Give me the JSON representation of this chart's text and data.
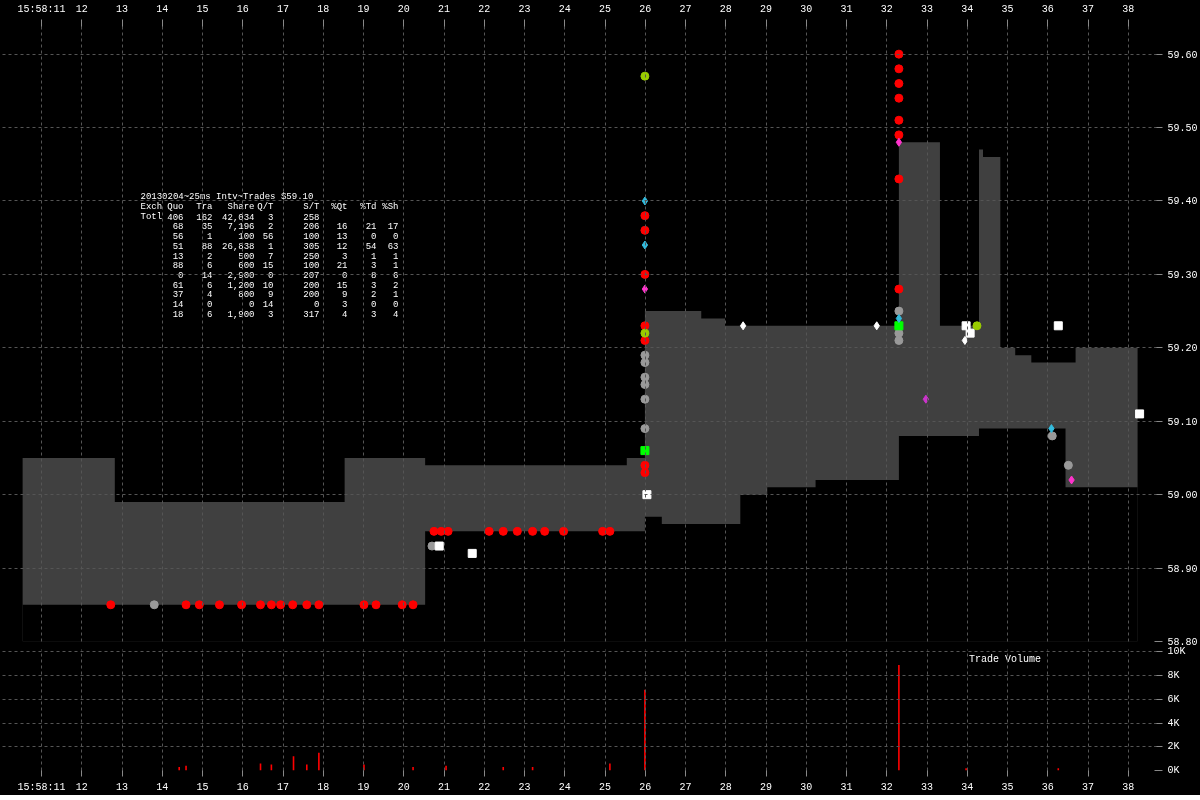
{
  "chart_data": [
    {
      "type": "scatter",
      "xlim": [
        "2013-02-04T15:58:10.03",
        "2013-02-04T15:58:38.70"
      ],
      "ylim": [
        58.8,
        59.639
      ],
      "xticks": [
        {
          "value": "2013-02-04T15:58:11",
          "label": "15:58:11"
        },
        {
          "value": "2013-02-04T15:58:12",
          "label": "12"
        },
        {
          "value": "2013-02-04T15:58:13",
          "label": "13"
        },
        {
          "value": "2013-02-04T15:58:14",
          "label": "14"
        },
        {
          "value": "2013-02-04T15:58:15",
          "label": "15"
        },
        {
          "value": "2013-02-04T15:58:16",
          "label": "16"
        },
        {
          "value": "2013-02-04T15:58:17",
          "label": "17"
        },
        {
          "value": "2013-02-04T15:58:18",
          "label": "18"
        },
        {
          "value": "2013-02-04T15:58:19",
          "label": "19"
        },
        {
          "value": "2013-02-04T15:58:20",
          "label": "20"
        },
        {
          "value": "2013-02-04T15:58:21",
          "label": "21"
        },
        {
          "value": "2013-02-04T15:58:22",
          "label": "22"
        },
        {
          "value": "2013-02-04T15:58:23",
          "label": "23"
        },
        {
          "value": "2013-02-04T15:58:24",
          "label": "24"
        },
        {
          "value": "2013-02-04T15:58:25",
          "label": "25"
        },
        {
          "value": "2013-02-04T15:58:26",
          "label": "26"
        },
        {
          "value": "2013-02-04T15:58:27",
          "label": "27"
        },
        {
          "value": "2013-02-04T15:58:28",
          "label": "28"
        },
        {
          "value": "2013-02-04T15:58:29",
          "label": "29"
        },
        {
          "value": "2013-02-04T15:58:30",
          "label": "30"
        },
        {
          "value": "2013-02-04T15:58:31",
          "label": "31"
        },
        {
          "value": "2013-02-04T15:58:32",
          "label": "32"
        },
        {
          "value": "2013-02-04T15:58:33",
          "label": "33"
        },
        {
          "value": "2013-02-04T15:58:34",
          "label": "34"
        },
        {
          "value": "2013-02-04T15:58:35",
          "label": "35"
        },
        {
          "value": "2013-02-04T15:58:36",
          "label": "36"
        },
        {
          "value": "2013-02-04T15:58:37",
          "label": "37"
        },
        {
          "value": "2013-02-04T15:58:38",
          "label": "38"
        }
      ],
      "yticks": [
        {
          "value": 58.8,
          "label": "58.80"
        },
        {
          "value": 58.9,
          "label": "58.90"
        },
        {
          "value": 59.0,
          "label": "59.00"
        },
        {
          "value": 59.1,
          "label": "59.10"
        },
        {
          "value": 59.2,
          "label": "59.20"
        },
        {
          "value": 59.3,
          "label": "59.30"
        },
        {
          "value": 59.4,
          "label": "59.40"
        },
        {
          "value": 59.5,
          "label": "59.50"
        },
        {
          "value": 59.6,
          "label": "59.60"
        }
      ],
      "grid": true,
      "annotations": [
        "20130204~25ms Intv~Trades $59.10",
        "Exch Quo Tra Share Q/T S/T %Qt %Td %Sh",
        "Totl 406 162 42,034 3 258",
        "68 35 7,196 2 206 16 21 17",
        "56 1 100 56 100 13 0 0",
        "51 88 26,838 1 305 12 54 63",
        "13 2 500 7 250 3 1 1",
        "88 6 600 15 100 21 3 1",
        "0 14 2,900 0 207 0 8 6",
        "61 6 1,200 10 200 15 3 2",
        "37 4 800 9 200 9 2 1",
        "14 0 0 14 0 3 0 0",
        "18 6 1,900 3 317 4 3 4"
      ],
      "series": [
        {
          "type": "area",
          "color": "#404040",
          "x": [
            "2013-02-04T15:58:10.53",
            "2013-02-04T15:58:12.82",
            "2013-02-04T15:58:18.53",
            "2013-02-04T15:58:20.53",
            "2013-02-04T15:58:25.54",
            "2013-02-04T15:58:25.99",
            "2013-02-04T15:58:26.41",
            "2013-02-04T15:58:27.39",
            "2013-02-04T15:58:27.98",
            "2013-02-04T15:58:28.36",
            "2013-02-04T15:58:29.03",
            "2013-02-04T15:58:30.23",
            "2013-02-04T15:58:32.30",
            "2013-02-04T15:58:33.32",
            "2013-02-04T15:58:34.29",
            "2013-02-04T15:58:34.39",
            "2013-02-04T15:58:34.82",
            "2013-02-04T15:58:35.19",
            "2013-02-04T15:58:35.59",
            "2013-02-04T15:58:36.44",
            "2013-02-04T15:58:36.69",
            "2013-02-04T15:58:38.23"
          ],
          "values": [
            59.05,
            58.99,
            59.05,
            59.04,
            59.05,
            59.25,
            59.25,
            59.24,
            59.23,
            59.23,
            59.23,
            59.23,
            59.48,
            59.23,
            59.47,
            59.46,
            59.2,
            59.19,
            59.18,
            59.18,
            59.2,
            59.2
          ]
        },
        {
          "type": "area",
          "color": "#000000",
          "x": [
            "2013-02-04T15:58:10.53",
            "2013-02-04T15:58:12.82",
            "2013-02-04T15:58:18.53",
            "2013-02-04T15:58:20.53",
            "2013-02-04T15:58:25.54",
            "2013-02-04T15:58:25.99",
            "2013-02-04T15:58:26.41",
            "2013-02-04T15:58:27.39",
            "2013-02-04T15:58:27.98",
            "2013-02-04T15:58:28.36",
            "2013-02-04T15:58:29.03",
            "2013-02-04T15:58:30.23",
            "2013-02-04T15:58:32.30",
            "2013-02-04T15:58:33.32",
            "2013-02-04T15:58:34.29",
            "2013-02-04T15:58:34.39",
            "2013-02-04T15:58:34.82",
            "2013-02-04T15:58:35.19",
            "2013-02-04T15:58:35.59",
            "2013-02-04T15:58:36.44",
            "2013-02-04T15:58:36.69",
            "2013-02-04T15:58:38.23"
          ],
          "values": [
            58.85,
            58.85,
            58.85,
            58.95,
            58.95,
            58.97,
            58.96,
            58.96,
            58.96,
            59.0,
            59.01,
            59.02,
            59.08,
            59.08,
            59.09,
            59.09,
            59.09,
            59.09,
            59.09,
            59.01,
            59.01,
            59.01
          ]
        },
        {
          "type": "scatter",
          "marker": "circle",
          "color": "#ff0000",
          "x": [
            "2013-02-04T15:58:12.72",
            "2013-02-04T15:58:14.59",
            "2013-02-04T15:58:14.92",
            "2013-02-04T15:58:15.42",
            "2013-02-04T15:58:15.97",
            "2013-02-04T15:58:16.44",
            "2013-02-04T15:58:16.71",
            "2013-02-04T15:58:16.94",
            "2013-02-04T15:58:17.24",
            "2013-02-04T15:58:17.59",
            "2013-02-04T15:58:17.89",
            "2013-02-04T15:58:19.01",
            "2013-02-04T15:58:19.31",
            "2013-02-04T15:58:19.96",
            "2013-02-04T15:58:20.23",
            "2013-02-04T15:58:20.75",
            "2013-02-04T15:58:20.93",
            "2013-02-04T15:58:21.10",
            "2013-02-04T15:58:22.12",
            "2013-02-04T15:58:22.47",
            "2013-02-04T15:58:22.82",
            "2013-02-04T15:58:23.20",
            "2013-02-04T15:58:23.50",
            "2013-02-04T15:58:23.97",
            "2013-02-04T15:58:24.94",
            "2013-02-04T15:58:25.12",
            "2013-02-04T15:58:25.99",
            "2013-02-04T15:58:25.99",
            "2013-02-04T15:58:25.99",
            "2013-02-04T15:58:25.99",
            "2013-02-04T15:58:25.99",
            "2013-02-04T15:58:25.99",
            "2013-02-04T15:58:25.99",
            "2013-02-04T15:58:32.30",
            "2013-02-04T15:58:32.30",
            "2013-02-04T15:58:32.30",
            "2013-02-04T15:58:32.30",
            "2013-02-04T15:58:32.30",
            "2013-02-04T15:58:32.30",
            "2013-02-04T15:58:32.30",
            "2013-02-04T15:58:32.30"
          ],
          "values": [
            58.85,
            58.85,
            58.85,
            58.85,
            58.85,
            58.85,
            58.85,
            58.85,
            58.85,
            58.85,
            58.85,
            58.85,
            58.85,
            58.85,
            58.85,
            58.95,
            58.95,
            58.95,
            58.95,
            58.95,
            58.95,
            58.95,
            58.95,
            58.95,
            58.95,
            58.95,
            59.38,
            59.36,
            59.3,
            59.23,
            59.21,
            59.04,
            59.03,
            59.6,
            59.58,
            59.56,
            59.54,
            59.51,
            59.49,
            59.43,
            59.28
          ]
        },
        {
          "type": "scatter",
          "marker": "circle",
          "color": "#999999",
          "x": [
            "2013-02-04T15:58:13.80",
            "2013-02-04T15:58:20.70",
            "2013-02-04T15:58:25.99",
            "2013-02-04T15:58:25.99",
            "2013-02-04T15:58:25.99",
            "2013-02-04T15:58:25.99",
            "2013-02-04T15:58:25.99",
            "2013-02-04T15:58:25.99",
            "2013-02-04T15:58:32.30",
            "2013-02-04T15:58:32.30",
            "2013-02-04T15:58:32.30",
            "2013-02-04T15:58:36.11",
            "2013-02-04T15:58:36.51"
          ],
          "values": [
            58.85,
            58.93,
            59.19,
            59.18,
            59.16,
            59.15,
            59.13,
            59.09,
            59.25,
            59.22,
            59.21,
            59.08,
            59.04
          ]
        },
        {
          "type": "scatter",
          "marker": "square",
          "color": "#00ff00",
          "x": [
            "2013-02-04T15:58:25.99",
            "2013-02-04T15:58:32.30"
          ],
          "values": [
            59.06,
            59.23
          ]
        },
        {
          "type": "scatter",
          "marker": "square",
          "color": "#ffffff",
          "x": [
            "2013-02-04T15:58:20.88",
            "2013-02-04T15:58:21.70",
            "2013-02-04T15:58:26.04",
            "2013-02-04T15:58:33.97",
            "2013-02-04T15:58:34.07",
            "2013-02-04T15:58:36.26",
            "2013-02-04T15:58:38.28"
          ],
          "values": [
            58.93,
            58.92,
            59.0,
            59.23,
            59.22,
            59.23,
            59.11
          ]
        },
        {
          "type": "scatter",
          "marker": "circle",
          "color": "#99cc00",
          "x": [
            "2013-02-04T15:58:25.99",
            "2013-02-04T15:58:25.99",
            "2013-02-04T15:58:34.24"
          ],
          "values": [
            59.57,
            59.22,
            59.23
          ]
        },
        {
          "type": "scatter",
          "marker": "diamond",
          "color": "#cc33cc",
          "x": [
            "2013-02-04T15:58:32.97"
          ],
          "values": [
            59.13
          ]
        },
        {
          "type": "scatter",
          "marker": "diamond",
          "color": "#ffffff",
          "x": [
            "2013-02-04T15:58:28.43",
            "2013-02-04T15:58:31.75",
            "2013-02-04T15:58:33.94"
          ],
          "values": [
            59.23,
            59.23,
            59.21
          ]
        },
        {
          "type": "scatter",
          "marker": "diamond",
          "color": "#ff33cc",
          "x": [
            "2013-02-04T15:58:25.99",
            "2013-02-04T15:58:32.30",
            "2013-02-04T15:58:36.59"
          ],
          "values": [
            59.28,
            59.48,
            59.02
          ]
        },
        {
          "type": "scatter",
          "marker": "diamond",
          "color": "#33bbdd",
          "x": [
            "2013-02-04T15:58:25.99",
            "2013-02-04T15:58:25.99",
            "2013-02-04T15:58:32.30",
            "2013-02-04T15:58:36.09"
          ],
          "values": [
            59.4,
            59.34,
            59.24,
            59.09
          ]
        }
      ]
    },
    {
      "type": "bar",
      "title": "Trade Volume",
      "color": "#ff0000",
      "xlim": [
        "2013-02-04T15:58:10.03",
        "2013-02-04T15:58:38.70"
      ],
      "ylim": [
        0,
        10200
      ],
      "grid": true,
      "xticks": [
        {
          "value": "2013-02-04T15:58:11",
          "label": "15:58:11"
        },
        {
          "value": "2013-02-04T15:58:12",
          "label": "12"
        },
        {
          "value": "2013-02-04T15:58:13",
          "label": "13"
        },
        {
          "value": "2013-02-04T15:58:14",
          "label": "14"
        },
        {
          "value": "2013-02-04T15:58:15",
          "label": "15"
        },
        {
          "value": "2013-02-04T15:58:16",
          "label": "16"
        },
        {
          "value": "2013-02-04T15:58:17",
          "label": "17"
        },
        {
          "value": "2013-02-04T15:58:18",
          "label": "18"
        },
        {
          "value": "2013-02-04T15:58:19",
          "label": "19"
        },
        {
          "value": "2013-02-04T15:58:20",
          "label": "20"
        },
        {
          "value": "2013-02-04T15:58:21",
          "label": "21"
        },
        {
          "value": "2013-02-04T15:58:22",
          "label": "22"
        },
        {
          "value": "2013-02-04T15:58:23",
          "label": "23"
        },
        {
          "value": "2013-02-04T15:58:24",
          "label": "24"
        },
        {
          "value": "2013-02-04T15:58:25",
          "label": "25"
        },
        {
          "value": "2013-02-04T15:58:26",
          "label": "26"
        },
        {
          "value": "2013-02-04T15:58:27",
          "label": "27"
        },
        {
          "value": "2013-02-04T15:58:28",
          "label": "28"
        },
        {
          "value": "2013-02-04T15:58:29",
          "label": "29"
        },
        {
          "value": "2013-02-04T15:58:30",
          "label": "30"
        },
        {
          "value": "2013-02-04T15:58:31",
          "label": "31"
        },
        {
          "value": "2013-02-04T15:58:32",
          "label": "32"
        },
        {
          "value": "2013-02-04T15:58:33",
          "label": "33"
        },
        {
          "value": "2013-02-04T15:58:34",
          "label": "34"
        },
        {
          "value": "2013-02-04T15:58:35",
          "label": "35"
        },
        {
          "value": "2013-02-04T15:58:36",
          "label": "36"
        },
        {
          "value": "2013-02-04T15:58:37",
          "label": "37"
        },
        {
          "value": "2013-02-04T15:58:38",
          "label": "38"
        }
      ],
      "yticks": [
        {
          "value": 0,
          "label": "0K"
        },
        {
          "value": 2000,
          "label": "2K"
        },
        {
          "value": 4000,
          "label": "4K"
        },
        {
          "value": 6000,
          "label": "6K"
        },
        {
          "value": 8000,
          "label": "8K"
        },
        {
          "value": 10000,
          "label": "10K"
        }
      ],
      "x": [
        "2013-02-04T15:58:14.42",
        "2013-02-04T15:58:14.59",
        "2013-02-04T15:58:16.44",
        "2013-02-04T15:58:16.71",
        "2013-02-04T15:58:17.26",
        "2013-02-04T15:58:17.59",
        "2013-02-04T15:58:17.89",
        "2013-02-04T15:58:19.01",
        "2013-02-04T15:58:20.23",
        "2013-02-04T15:58:21.05",
        "2013-02-04T15:58:22.47",
        "2013-02-04T15:58:23.20",
        "2013-02-04T15:58:25.12",
        "2013-02-04T15:58:25.99",
        "2013-02-04T15:58:32.30",
        "2013-02-04T15:58:33.97",
        "2013-02-04T15:58:36.26"
      ],
      "values": [
        300,
        400,
        600,
        500,
        1200,
        500,
        1500,
        500,
        300,
        400,
        300,
        300,
        600,
        6800,
        8900,
        200,
        200
      ]
    }
  ]
}
